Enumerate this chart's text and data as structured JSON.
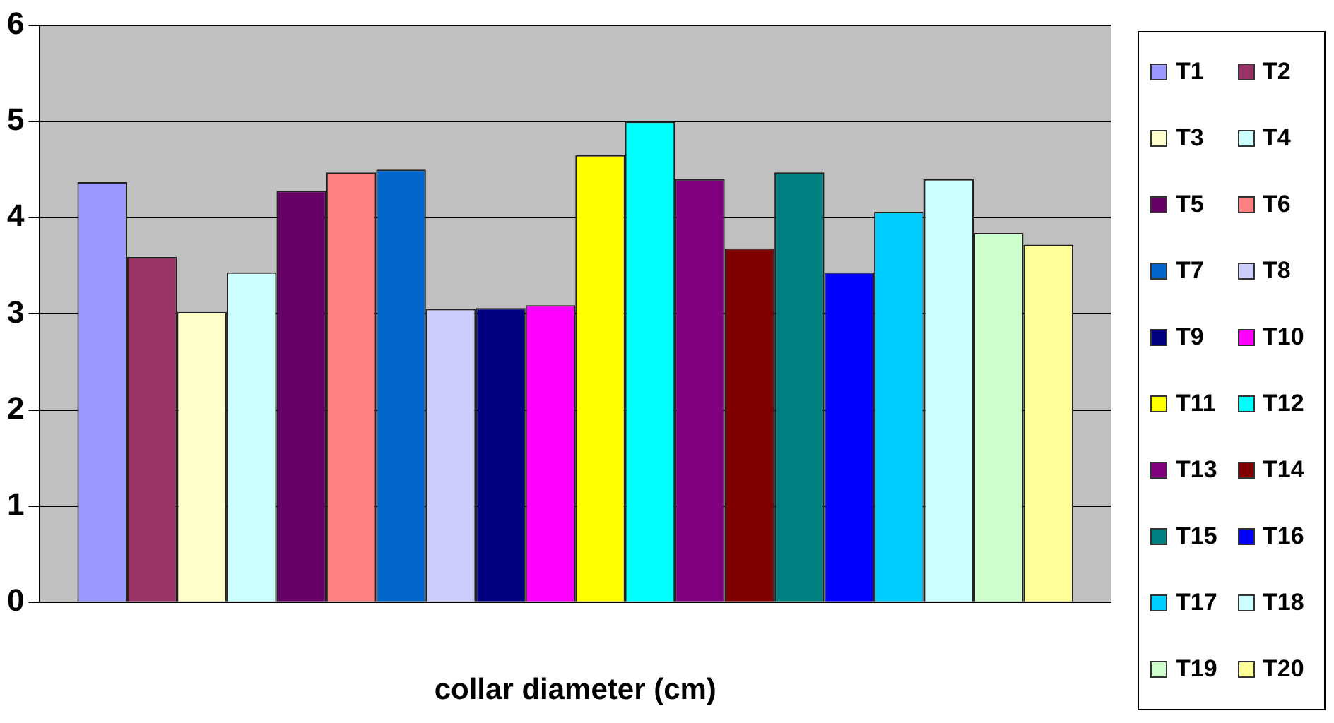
{
  "chart_data": {
    "type": "bar",
    "xlabel": "collar diameter (cm)",
    "categories": [
      null
    ],
    "ylim": [
      0,
      6
    ],
    "yticks": [
      0,
      1,
      2,
      3,
      4,
      5,
      6
    ],
    "grid": "y",
    "legend": "right",
    "series": [
      {
        "name": "T1",
        "color": "#9999ff",
        "values": [
          4.37
        ]
      },
      {
        "name": "T2",
        "color": "#993366",
        "values": [
          3.59
        ]
      },
      {
        "name": "T3",
        "color": "#ffffcc",
        "values": [
          3.02
        ]
      },
      {
        "name": "T4",
        "color": "#ccffff",
        "values": [
          3.43
        ]
      },
      {
        "name": "T5",
        "color": "#660066",
        "values": [
          4.28
        ]
      },
      {
        "name": "T6",
        "color": "#ff8080",
        "values": [
          4.47
        ]
      },
      {
        "name": "T7",
        "color": "#0066cc",
        "values": [
          4.5
        ]
      },
      {
        "name": "T8",
        "color": "#ccccff",
        "values": [
          3.05
        ]
      },
      {
        "name": "T9",
        "color": "#000080",
        "values": [
          3.06
        ]
      },
      {
        "name": "T10",
        "color": "#ff00ff",
        "values": [
          3.09
        ]
      },
      {
        "name": "T11",
        "color": "#ffff00",
        "values": [
          4.65
        ]
      },
      {
        "name": "T12",
        "color": "#00ffff",
        "values": [
          5.0
        ]
      },
      {
        "name": "T13",
        "color": "#800080",
        "values": [
          4.4
        ]
      },
      {
        "name": "T14",
        "color": "#800000",
        "values": [
          3.68
        ]
      },
      {
        "name": "T15",
        "color": "#008080",
        "values": [
          4.47
        ]
      },
      {
        "name": "T16",
        "color": "#0000ff",
        "values": [
          3.43
        ]
      },
      {
        "name": "T17",
        "color": "#00ccff",
        "values": [
          4.06
        ]
      },
      {
        "name": "T18",
        "color": "#ccffff",
        "values": [
          4.4
        ]
      },
      {
        "name": "T19",
        "color": "#ccffcc",
        "values": [
          3.84
        ]
      },
      {
        "name": "T20",
        "color": "#ffff99",
        "values": [
          3.72
        ]
      }
    ]
  }
}
